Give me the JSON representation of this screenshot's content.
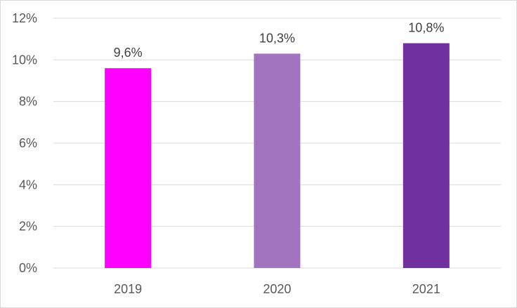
{
  "chart_data": {
    "type": "bar",
    "categories": [
      "2019",
      "2020",
      "2021"
    ],
    "values": [
      9.6,
      10.3,
      10.8
    ],
    "data_labels": [
      "9,6%",
      "10,3%",
      "10,8%"
    ],
    "colors": [
      "#ff00ff",
      "#a274c0",
      "#7030a0"
    ],
    "title": "",
    "xlabel": "",
    "ylabel": "",
    "ylim": [
      0,
      12
    ],
    "yticks": [
      {
        "value": 0,
        "label": "0%"
      },
      {
        "value": 2,
        "label": "2%"
      },
      {
        "value": 4,
        "label": "4%"
      },
      {
        "value": 6,
        "label": "6%"
      },
      {
        "value": 8,
        "label": "8%"
      },
      {
        "value": 10,
        "label": "10%"
      },
      {
        "value": 12,
        "label": "12%"
      }
    ],
    "grid": true,
    "legend": "none"
  }
}
